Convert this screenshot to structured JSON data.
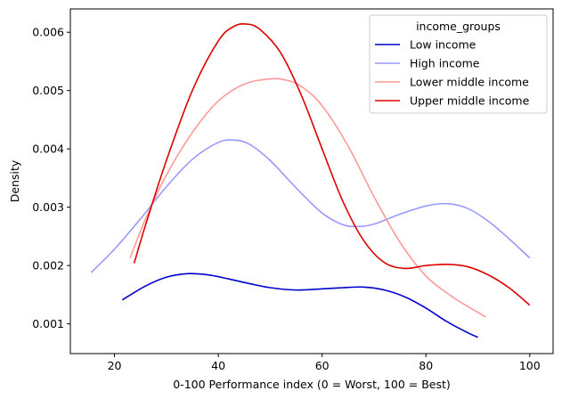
{
  "chart_data": {
    "type": "line",
    "title": "",
    "xlabel": "0-100 Performance index (0 = Worst, 100 = Best)",
    "ylabel": "Density",
    "xlim": [
      11.5,
      104.5
    ],
    "ylim": [
      0.00049,
      0.0064
    ],
    "xticks": [
      20,
      40,
      60,
      80,
      100
    ],
    "xtick_labels": [
      "20",
      "40",
      "60",
      "80",
      "100"
    ],
    "yticks": [
      0.001,
      0.002,
      0.003,
      0.004,
      0.005,
      0.006
    ],
    "ytick_labels": [
      "0.001",
      "0.002",
      "0.003",
      "0.004",
      "0.005",
      "0.006"
    ],
    "grid": false,
    "legend": {
      "title": "income_groups",
      "placement": "top-right"
    },
    "series": [
      {
        "name": "Low income",
        "color": "#0000cc",
        "x": [
          21.5,
          26,
          30,
          34,
          38,
          42,
          46,
          50,
          55,
          60,
          64,
          68,
          72,
          76,
          80,
          84,
          88,
          90
        ],
        "y": [
          0.00141,
          0.00165,
          0.0018,
          0.00186,
          0.00184,
          0.00177,
          0.00169,
          0.00162,
          0.00158,
          0.0016,
          0.00162,
          0.00163,
          0.00158,
          0.00146,
          0.00127,
          0.00104,
          0.00085,
          0.00077
        ]
      },
      {
        "name": "High income",
        "color": "#9999ff",
        "x": [
          15.5,
          20,
          25,
          30,
          35,
          40,
          43,
          46,
          50,
          55,
          60,
          64,
          67,
          70,
          75,
          80,
          84,
          88,
          92,
          96,
          100
        ],
        "y": [
          0.00188,
          0.00228,
          0.0028,
          0.00335,
          0.00382,
          0.00411,
          0.00415,
          0.00408,
          0.0038,
          0.00333,
          0.0029,
          0.0027,
          0.00267,
          0.00271,
          0.00288,
          0.00302,
          0.00306,
          0.00298,
          0.00276,
          0.00246,
          0.00213
        ]
      },
      {
        "name": "Lower middle income",
        "color": "#ff9999",
        "x": [
          23,
          26,
          30,
          35,
          40,
          45,
          50,
          53,
          56,
          60,
          65,
          70,
          75,
          80,
          85,
          88,
          91.5
        ],
        "y": [
          0.00213,
          0.0028,
          0.00355,
          0.00428,
          0.00482,
          0.00511,
          0.0052,
          0.00518,
          0.00507,
          0.00474,
          0.00405,
          0.00318,
          0.0024,
          0.00182,
          0.00147,
          0.0013,
          0.00112
        ]
      },
      {
        "name": "Upper middle income",
        "color": "#dd0000",
        "x": [
          23.8,
          26,
          30,
          35,
          40,
          43,
          45.5,
          48,
          52,
          56,
          60,
          64,
          68,
          72,
          76,
          80,
          84,
          88,
          92,
          96,
          100
        ],
        "y": [
          0.00204,
          0.0027,
          0.0038,
          0.005,
          0.00585,
          0.0061,
          0.00614,
          0.00605,
          0.00565,
          0.00492,
          0.004,
          0.0031,
          0.00243,
          0.00205,
          0.00195,
          0.002,
          0.00202,
          0.00198,
          0.00184,
          0.00162,
          0.00132
        ]
      }
    ]
  }
}
